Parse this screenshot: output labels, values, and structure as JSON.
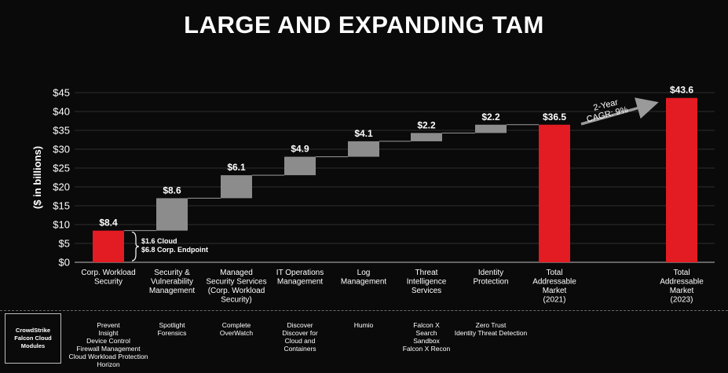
{
  "title": "LARGE AND EXPANDING TAM",
  "chart_data": {
    "type": "waterfall",
    "ylabel": "($ in billions)",
    "ylim": [
      0,
      45
    ],
    "yticks": [
      0,
      5,
      10,
      15,
      20,
      25,
      30,
      35,
      40,
      45
    ],
    "ytick_labels": [
      "$0",
      "$5",
      "$10",
      "$15",
      "$20",
      "$25",
      "$30",
      "$35",
      "$40",
      "$45"
    ],
    "bars": [
      {
        "category": "Corp. Workload Security",
        "base": 0,
        "value": 8.4,
        "label": "$8.4",
        "color": "#e31b23",
        "kind": "total"
      },
      {
        "category": "Security & Vulnerability Management",
        "base": 8.4,
        "value": 8.6,
        "label": "$8.6",
        "color": "#8c8c8c",
        "kind": "increment"
      },
      {
        "category": "Managed Security Services (Corp. Workload Security)",
        "base": 17.0,
        "value": 6.1,
        "label": "$6.1",
        "color": "#8c8c8c",
        "kind": "increment"
      },
      {
        "category": "IT Operations Management",
        "base": 23.1,
        "value": 4.9,
        "label": "$4.9",
        "color": "#8c8c8c",
        "kind": "increment"
      },
      {
        "category": "Log Management",
        "base": 28.0,
        "value": 4.1,
        "label": "$4.1",
        "color": "#8c8c8c",
        "kind": "increment"
      },
      {
        "category": "Threat Intelligence Services",
        "base": 32.1,
        "value": 2.2,
        "label": "$2.2",
        "color": "#8c8c8c",
        "kind": "increment"
      },
      {
        "category": "Identity Protection",
        "base": 34.3,
        "value": 2.2,
        "label": "$2.2",
        "color": "#8c8c8c",
        "kind": "increment"
      },
      {
        "category": "Total Addressable Market (2021)",
        "base": 0,
        "value": 36.5,
        "label": "$36.5",
        "color": "#e31b23",
        "kind": "total"
      },
      {
        "category": "Total Addressable Market (2023)",
        "base": 0,
        "value": 43.6,
        "label": "$43.6",
        "color": "#e31b23",
        "kind": "total"
      }
    ],
    "category_labels": [
      [
        "Corp. Workload",
        "Security"
      ],
      [
        "Security &",
        "Vulnerability",
        "Management"
      ],
      [
        "Managed",
        "Security Services",
        "(Corp. Workload",
        "Security)"
      ],
      [
        "IT Operations",
        "Management"
      ],
      [
        "Log",
        "Management"
      ],
      [
        "Threat",
        "Intelligence",
        "Services"
      ],
      [
        "Identity",
        "Protection"
      ],
      [
        "Total",
        "Addressable",
        "Market",
        "(2021)"
      ],
      [
        "Total",
        "Addressable",
        "Market",
        "(2023)"
      ]
    ],
    "breakdown_annotation": [
      "$1.6 Cloud",
      "$6.8 Corp. Endpoint"
    ],
    "cagr_annotation": [
      "2-Year",
      "CAGR: 9%"
    ],
    "modules_header": "CrowdStrike\nFalcon Cloud\nModules",
    "modules": [
      [
        "Prevent",
        "Insight",
        "Device Control",
        "Firewall Management",
        "Cloud Workload Protection",
        "Horizon"
      ],
      [
        "Spotlight",
        "Forensics"
      ],
      [
        "Complete",
        "OverWatch"
      ],
      [
        "Discover",
        "Discover for",
        "Cloud and",
        "Containers"
      ],
      [
        "Humio"
      ],
      [
        "Falcon X",
        "Search",
        "Sandbox",
        "Falcon X Recon"
      ],
      [
        "Zero Trust",
        "Identity Threat Detection"
      ],
      [],
      []
    ]
  }
}
